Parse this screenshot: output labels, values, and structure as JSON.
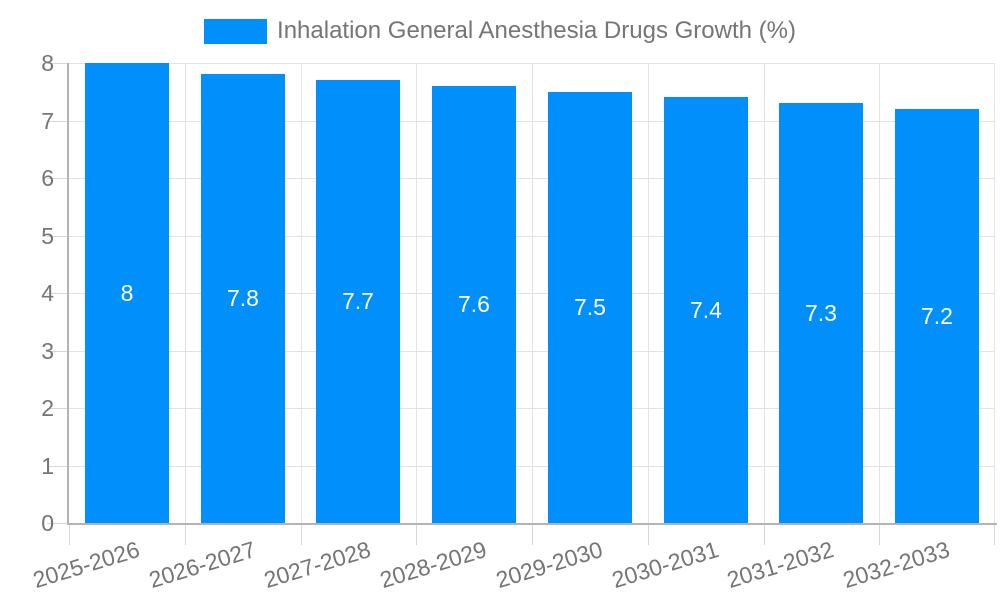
{
  "legend": {
    "label": "Inhalation General Anesthesia Drugs Growth (%)"
  },
  "colors": {
    "bar": "#008FFB",
    "bar_label": "#FFFFFF",
    "grid_line": "#E3E3E3",
    "tick_line": "#D6D6D6",
    "axis_line": "#B3B3B3",
    "axis_text": "#757575",
    "background": "#FFFFFF"
  },
  "chart_data": {
    "type": "bar",
    "title": "Inhalation General Anesthesia Drugs Growth (%)",
    "categories": [
      "2025-2026",
      "2026-2027",
      "2027-2028",
      "2028-2029",
      "2029-2030",
      "2030-2031",
      "2031-2032",
      "2032-2033"
    ],
    "values": [
      8,
      7.8,
      7.7,
      7.6,
      7.5,
      7.4,
      7.3,
      7.2
    ],
    "value_labels": [
      "8",
      "7.8",
      "7.7",
      "7.6",
      "7.5",
      "7.4",
      "7.3",
      "7.2"
    ],
    "xlabel": "",
    "ylabel": "",
    "ylim": [
      0,
      8
    ],
    "ytick_interval": 1,
    "ytick_labels": [
      "0",
      "1",
      "2",
      "3",
      "4",
      "5",
      "6",
      "7",
      "8"
    ],
    "grid": "on",
    "legend_position": "top",
    "x_label_rotation_deg": -17,
    "bar_label_position": "center"
  }
}
